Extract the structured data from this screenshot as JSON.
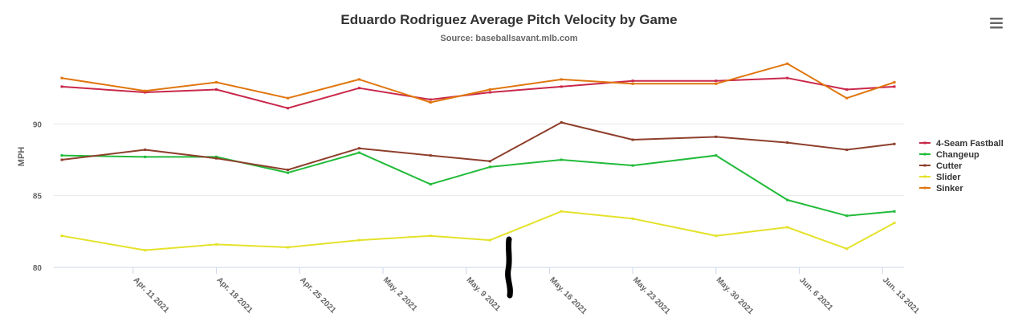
{
  "chart_data": {
    "type": "line",
    "title": "Eduardo Rodriguez Average Pitch Velocity by Game",
    "subtitle": "Source: baseballsavant.mlb.com",
    "xlabel": "",
    "ylabel": "MPH",
    "ylim": [
      80,
      95
    ],
    "yticks": [
      80,
      85,
      90
    ],
    "x_tick_labels": [
      "Apr. 11 2021",
      "Apr. 18 2021",
      "Apr. 25 2021",
      "May. 2 2021",
      "May. 9 2021",
      "May. 16 2021",
      "May. 23 2021",
      "May. 30 2021",
      "Jun. 6 2021",
      "Jun. 13 2021"
    ],
    "x_tick_dates": [
      "2021-04-11",
      "2021-04-18",
      "2021-04-25",
      "2021-05-02",
      "2021-05-09",
      "2021-05-16",
      "2021-05-23",
      "2021-05-30",
      "2021-06-06",
      "2021-06-13"
    ],
    "xlim": [
      "2021-04-05",
      "2021-06-14"
    ],
    "game_dates": [
      "2021-04-05",
      "2021-04-12",
      "2021-04-18",
      "2021-04-24",
      "2021-04-30",
      "2021-05-06",
      "2021-05-11",
      "2021-05-17",
      "2021-05-23",
      "2021-05-30",
      "2021-06-05",
      "2021-06-10",
      "2021-06-14"
    ],
    "grid": true,
    "legend_position": "right",
    "series": [
      {
        "name": "4-Seam Fastball",
        "color": "#c9284a",
        "values": [
          92.6,
          92.2,
          92.4,
          91.1,
          92.5,
          91.7,
          92.2,
          92.6,
          93.0,
          93.0,
          93.2,
          92.4,
          92.6
        ]
      },
      {
        "name": "Changeup",
        "color": "#22bb3a",
        "values": [
          87.8,
          87.7,
          87.7,
          86.6,
          88.0,
          85.8,
          87.0,
          87.5,
          87.1,
          87.8,
          84.7,
          83.6,
          83.9
        ]
      },
      {
        "name": "Cutter",
        "color": "#8e3f2c",
        "values": [
          87.5,
          88.2,
          87.6,
          86.8,
          88.3,
          87.8,
          87.4,
          90.1,
          88.9,
          89.1,
          88.7,
          88.2,
          88.6
        ]
      },
      {
        "name": "Slider",
        "color": "#e4e22a",
        "values": [
          82.2,
          81.2,
          81.6,
          81.4,
          81.9,
          82.2,
          81.9,
          83.9,
          83.4,
          82.2,
          82.8,
          81.3,
          83.1
        ]
      },
      {
        "name": "Sinker",
        "color": "#e0760e",
        "values": [
          93.2,
          92.3,
          92.9,
          91.8,
          93.1,
          91.5,
          92.4,
          93.1,
          92.8,
          92.8,
          94.2,
          91.8,
          92.9
        ]
      }
    ]
  },
  "ui": {
    "menu_icon": "hamburger-menu-icon",
    "mark_color": "#000000"
  }
}
